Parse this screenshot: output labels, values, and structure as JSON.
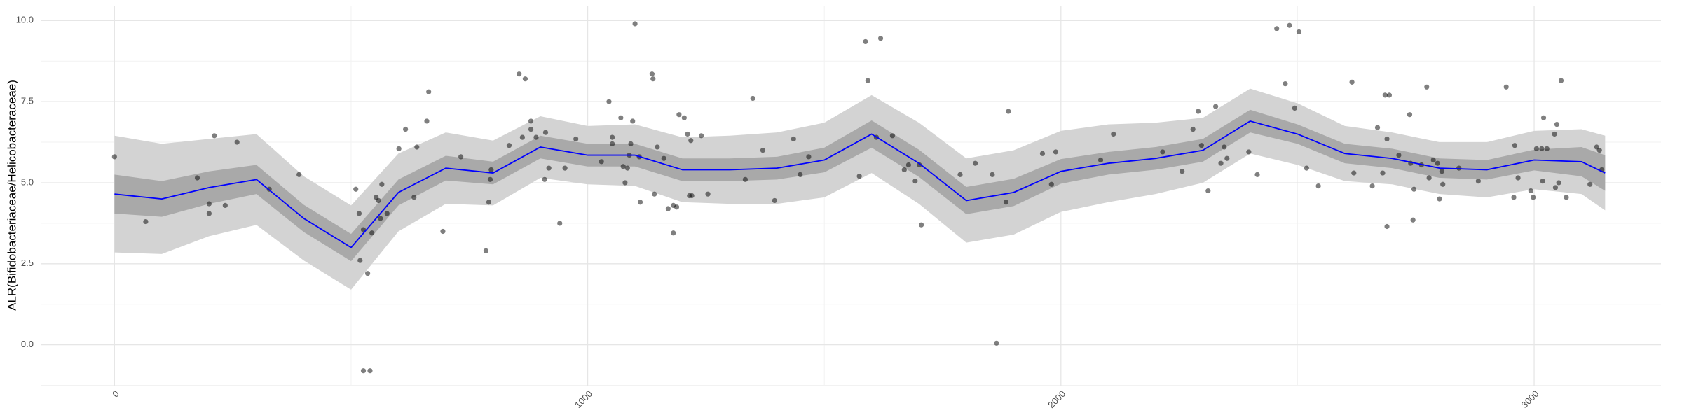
{
  "chart_data": {
    "type": "scatter",
    "y_label": "ALR(Bifidobacteriaceae/Helicobacteraceae)",
    "xlim": [
      -156,
      3268
    ],
    "ylim": [
      -1.26,
      10.46
    ],
    "xticks": [
      0,
      1000,
      2000,
      3000
    ],
    "yticks": [
      {
        "value": 0,
        "label": "0.0"
      },
      {
        "value": 2.5,
        "label": "2.5"
      },
      {
        "value": 5,
        "label": "5.0"
      },
      {
        "value": 7.5,
        "label": "7.5"
      },
      {
        "value": 10,
        "label": "10.0"
      }
    ],
    "grid": true,
    "points": {
      "color": "#000000",
      "x": [
        0,
        66,
        175,
        200,
        200,
        211,
        234,
        259,
        327,
        390,
        510,
        519,
        517,
        526,
        526,
        535,
        540,
        544,
        553,
        558,
        565,
        562,
        576,
        601,
        615,
        633,
        639,
        660,
        664,
        694,
        732,
        785,
        791,
        796,
        794,
        834,
        855,
        868,
        862,
        880,
        880,
        891,
        909,
        911,
        918,
        941,
        952,
        975,
        1029,
        1045,
        1052,
        1052,
        1070,
        1075,
        1079,
        1084,
        1088,
        1091,
        1095,
        1100,
        1109,
        1111,
        1136,
        1138,
        1141,
        1147,
        1161,
        1170,
        1181,
        1181,
        1188,
        1193,
        1204,
        1211,
        1215,
        1218,
        1220,
        1240,
        1254,
        1333,
        1349,
        1370,
        1395,
        1435,
        1449,
        1467,
        1574,
        1587,
        1592,
        1610,
        1619,
        1644,
        1669,
        1678,
        1692,
        1701,
        1705,
        1787,
        1819,
        1855,
        1864,
        1884,
        1889,
        1961,
        1980,
        1989,
        2084,
        2111,
        2215,
        2256,
        2279,
        2290,
        2297,
        2311,
        2327,
        2338,
        2345,
        2351,
        2397,
        2415,
        2456,
        2474,
        2483,
        2494,
        2503,
        2519,
        2544,
        2615,
        2619,
        2658,
        2669,
        2680,
        2685,
        2689,
        2694,
        2689,
        2714,
        2737,
        2744,
        2739,
        2746,
        2762,
        2773,
        2778,
        2787,
        2796,
        2800,
        2805,
        2807,
        2841,
        2882,
        2941,
        2957,
        2959,
        2966,
        2993,
        2998,
        3005,
        3016,
        3018,
        3020,
        3027,
        3043,
        3045,
        3052,
        3048,
        3057,
        3068,
        3118,
        3132,
        3138,
        3143
      ],
      "y": [
        5.8,
        3.8,
        5.15,
        4.35,
        4.05,
        6.45,
        4.3,
        6.25,
        4.8,
        5.25,
        4.8,
        2.6,
        4.05,
        3.55,
        -0.8,
        2.2,
        -0.8,
        3.45,
        4.55,
        4.45,
        4.95,
        3.9,
        4.05,
        6.05,
        6.65,
        4.55,
        6.1,
        6.9,
        7.8,
        3.5,
        5.8,
        2.9,
        4.4,
        5.4,
        5.1,
        6.15,
        8.35,
        8.2,
        6.4,
        6.9,
        6.65,
        6.4,
        5.1,
        6.55,
        5.45,
        3.75,
        5.45,
        6.35,
        5.65,
        7.5,
        6.4,
        6.2,
        7.0,
        5.5,
        5.0,
        5.45,
        5.85,
        6.2,
        6.9,
        9.9,
        5.8,
        4.4,
        8.35,
        8.2,
        4.65,
        6.1,
        5.75,
        4.2,
        4.3,
        3.45,
        4.25,
        7.1,
        7.0,
        6.5,
        4.6,
        6.3,
        4.6,
        6.45,
        4.65,
        5.1,
        7.6,
        6.0,
        4.45,
        6.35,
        5.25,
        5.8,
        5.2,
        9.35,
        8.15,
        6.4,
        9.45,
        6.45,
        5.4,
        5.55,
        5.05,
        5.55,
        3.7,
        5.25,
        5.6,
        5.25,
        0.05,
        4.4,
        7.2,
        5.9,
        4.95,
        5.95,
        5.7,
        6.5,
        5.95,
        5.35,
        6.65,
        7.2,
        6.15,
        4.75,
        7.35,
        5.6,
        6.1,
        5.75,
        5.95,
        5.25,
        9.75,
        8.05,
        9.85,
        7.3,
        9.65,
        5.45,
        4.9,
        8.1,
        5.3,
        4.9,
        6.7,
        5.3,
        7.7,
        3.65,
        7.7,
        6.35,
        5.85,
        7.1,
        3.85,
        5.6,
        4.8,
        5.55,
        7.95,
        5.15,
        5.7,
        5.6,
        4.5,
        5.35,
        4.95,
        5.45,
        5.05,
        7.95,
        4.55,
        6.15,
        5.15,
        4.75,
        4.55,
        6.05,
        6.05,
        5.05,
        7.0,
        6.05,
        6.5,
        4.85,
        5.0,
        6.8,
        8.15,
        4.55,
        4.95,
        6.1,
        6.0,
        5.4
      ]
    },
    "smooth": {
      "color": "#0000ff",
      "x": [
        0,
        100,
        200,
        300,
        400,
        500,
        600,
        700,
        800,
        900,
        1000,
        1100,
        1200,
        1300,
        1400,
        1500,
        1600,
        1700,
        1800,
        1900,
        2000,
        2100,
        2200,
        2300,
        2400,
        2500,
        2600,
        2700,
        2800,
        2900,
        3000,
        3100,
        3150
      ],
      "y": [
        4.65,
        4.5,
        4.85,
        5.1,
        3.9,
        3.0,
        4.7,
        5.45,
        5.3,
        6.1,
        5.85,
        5.85,
        5.4,
        5.4,
        5.45,
        5.7,
        6.5,
        5.6,
        4.45,
        4.7,
        5.35,
        5.6,
        5.75,
        6.0,
        6.9,
        6.5,
        5.9,
        5.75,
        5.45,
        5.4,
        5.7,
        5.65,
        5.3
      ]
    },
    "band_outer": {
      "color": "#d3d3d3",
      "lower": [
        2.85,
        2.8,
        3.35,
        3.7,
        2.6,
        1.7,
        3.5,
        4.35,
        4.3,
        5.15,
        4.95,
        4.9,
        4.4,
        4.35,
        4.35,
        4.55,
        5.3,
        4.35,
        3.15,
        3.4,
        4.1,
        4.4,
        4.65,
        5.0,
        5.9,
        5.55,
        5.05,
        4.95,
        4.65,
        4.55,
        4.8,
        4.65,
        4.15
      ],
      "upper": [
        6.45,
        6.2,
        6.35,
        6.5,
        5.2,
        4.3,
        5.9,
        6.55,
        6.3,
        7.05,
        6.75,
        6.8,
        6.4,
        6.45,
        6.55,
        6.85,
        7.7,
        6.85,
        5.75,
        6.0,
        6.6,
        6.8,
        6.85,
        7.0,
        7.9,
        7.45,
        6.75,
        6.55,
        6.25,
        6.25,
        6.6,
        6.65,
        6.45
      ]
    },
    "band_inner": {
      "color": "#a9a9a9",
      "lower": [
        4.05,
        3.95,
        4.35,
        4.65,
        3.48,
        2.58,
        4.3,
        5.07,
        4.95,
        5.75,
        5.5,
        5.5,
        5.05,
        5.05,
        5.1,
        5.32,
        6.08,
        5.18,
        4.03,
        4.28,
        4.97,
        5.25,
        5.4,
        5.65,
        6.55,
        6.2,
        5.6,
        5.45,
        5.15,
        5.1,
        5.38,
        5.2,
        4.75
      ],
      "upper": [
        5.25,
        5.05,
        5.35,
        5.55,
        4.32,
        3.42,
        5.1,
        5.83,
        5.65,
        6.45,
        6.2,
        6.2,
        5.75,
        5.75,
        5.8,
        6.08,
        6.92,
        6.02,
        4.87,
        5.12,
        5.73,
        5.95,
        6.1,
        6.35,
        7.25,
        6.8,
        6.2,
        6.05,
        5.75,
        5.7,
        6.02,
        6.1,
        5.85
      ]
    }
  }
}
